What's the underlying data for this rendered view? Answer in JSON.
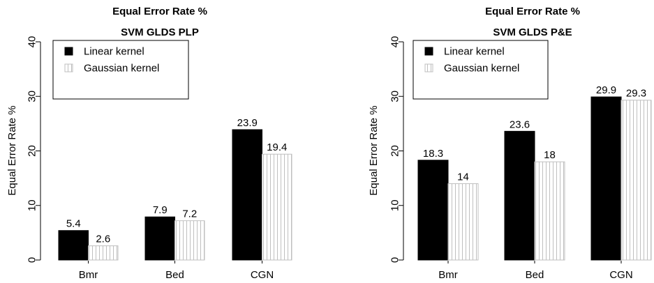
{
  "chart_data": [
    {
      "type": "bar",
      "title": "Equal Error Rate %",
      "subtitle": "SVM GLDS PLP",
      "xlabel": "",
      "ylabel": "Equal Error Rate %",
      "ylim": [
        0,
        40
      ],
      "yticks": [
        "0",
        "10",
        "20",
        "30",
        "40"
      ],
      "categories": [
        "Bmr",
        "Bed",
        "CGN"
      ],
      "series": [
        {
          "name": "Linear kernel",
          "values": [
            5.4,
            7.9,
            23.9
          ],
          "labels": [
            "5.4",
            "7.9",
            "23.9"
          ],
          "fill": "solid",
          "color": "#000000"
        },
        {
          "name": "Gaussian kernel",
          "values": [
            2.6,
            7.2,
            19.4
          ],
          "labels": [
            "2.6",
            "7.2",
            "19.4"
          ],
          "fill": "vertical-lines",
          "color": "#bfbfbf"
        }
      ],
      "grid": false,
      "legend": "top-left"
    },
    {
      "type": "bar",
      "title": "Equal Error Rate %",
      "subtitle": "SVM GLDS P&E",
      "xlabel": "",
      "ylabel": "Equal Error Rate %",
      "ylim": [
        0,
        40
      ],
      "yticks": [
        "0",
        "10",
        "20",
        "30",
        "40"
      ],
      "categories": [
        "Bmr",
        "Bed",
        "CGN"
      ],
      "series": [
        {
          "name": "Linear kernel",
          "values": [
            18.3,
            23.6,
            29.9
          ],
          "labels": [
            "18.3",
            "23.6",
            "29.9"
          ],
          "fill": "solid",
          "color": "#000000"
        },
        {
          "name": "Gaussian kernel",
          "values": [
            14,
            18,
            29.3
          ],
          "labels": [
            "14",
            "18",
            "29.3"
          ],
          "fill": "vertical-lines",
          "color": "#bfbfbf"
        }
      ],
      "grid": false,
      "legend": "top-left"
    }
  ]
}
